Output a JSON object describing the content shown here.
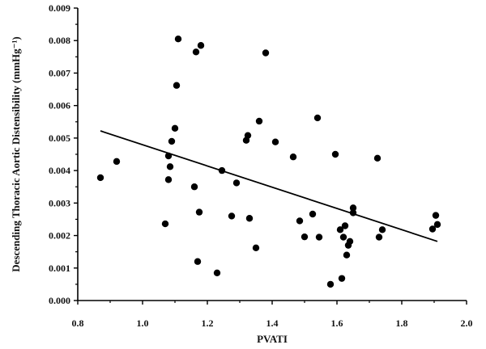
{
  "chart_data": {
    "type": "scatter",
    "xlabel": "PVATI",
    "ylabel": "Descending Thoracic Aortic Distensibility (mmHg⁻¹)",
    "xlim": [
      0.8,
      2.0
    ],
    "ylim": [
      0.0,
      0.009
    ],
    "x_ticks": [
      "0.8",
      "1.0",
      "1.2",
      "1.4",
      "1.6",
      "1.8",
      "2.0"
    ],
    "y_ticks": [
      "0.000",
      "0.001",
      "0.002",
      "0.003",
      "0.004",
      "0.005",
      "0.006",
      "0.007",
      "0.008",
      "0.009"
    ],
    "grid": false,
    "marker_color": "#000000",
    "trendline": {
      "x": [
        0.87,
        1.91
      ],
      "y": [
        0.00522,
        0.00182
      ]
    },
    "points": [
      [
        0.87,
        0.00378
      ],
      [
        0.92,
        0.00428
      ],
      [
        1.07,
        0.00236
      ],
      [
        1.08,
        0.00445
      ],
      [
        1.08,
        0.00372
      ],
      [
        1.085,
        0.00412
      ],
      [
        1.09,
        0.0049
      ],
      [
        1.1,
        0.0053
      ],
      [
        1.105,
        0.00662
      ],
      [
        1.11,
        0.00805
      ],
      [
        1.16,
        0.0035
      ],
      [
        1.165,
        0.00765
      ],
      [
        1.17,
        0.0012
      ],
      [
        1.175,
        0.00272
      ],
      [
        1.18,
        0.00785
      ],
      [
        1.23,
        0.00085
      ],
      [
        1.245,
        0.004
      ],
      [
        1.275,
        0.0026
      ],
      [
        1.29,
        0.00362
      ],
      [
        1.32,
        0.00493
      ],
      [
        1.325,
        0.00508
      ],
      [
        1.33,
        0.00253
      ],
      [
        1.35,
        0.00162
      ],
      [
        1.36,
        0.00552
      ],
      [
        1.38,
        0.00762
      ],
      [
        1.41,
        0.00488
      ],
      [
        1.465,
        0.00442
      ],
      [
        1.485,
        0.00245
      ],
      [
        1.5,
        0.00196
      ],
      [
        1.525,
        0.00266
      ],
      [
        1.54,
        0.00562
      ],
      [
        1.545,
        0.00195
      ],
      [
        1.58,
        0.0005
      ],
      [
        1.595,
        0.0045
      ],
      [
        1.61,
        0.00218
      ],
      [
        1.615,
        0.00068
      ],
      [
        1.62,
        0.00195
      ],
      [
        1.625,
        0.0023
      ],
      [
        1.63,
        0.0014
      ],
      [
        1.635,
        0.0017
      ],
      [
        1.64,
        0.00182
      ],
      [
        1.65,
        0.00285
      ],
      [
        1.65,
        0.0027
      ],
      [
        1.725,
        0.00438
      ],
      [
        1.73,
        0.00195
      ],
      [
        1.74,
        0.00218
      ],
      [
        1.895,
        0.0022
      ],
      [
        1.905,
        0.00262
      ],
      [
        1.91,
        0.00234
      ]
    ]
  }
}
